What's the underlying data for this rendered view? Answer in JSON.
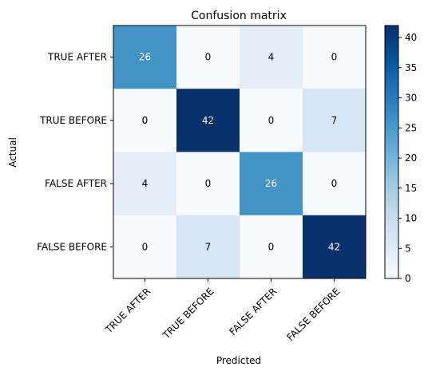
{
  "chart_data": {
    "type": "heatmap",
    "title": "Confusion matrix",
    "xlabel": "Predicted",
    "ylabel": "Actual",
    "row_labels": [
      "TRUE AFTER",
      "TRUE BEFORE",
      "FALSE AFTER",
      "FALSE BEFORE"
    ],
    "col_labels": [
      "TRUE AFTER",
      "TRUE BEFORE",
      "FALSE AFTER",
      "FALSE BEFORE"
    ],
    "values": [
      [
        26,
        0,
        4,
        0
      ],
      [
        0,
        42,
        0,
        7
      ],
      [
        4,
        0,
        26,
        0
      ],
      [
        0,
        7,
        0,
        42
      ]
    ],
    "colorbar": {
      "range": [
        0,
        42
      ],
      "ticks": [
        0,
        5,
        10,
        15,
        20,
        25,
        30,
        35,
        40
      ],
      "colormap": "Blues"
    },
    "text_colors": {
      "light": "#ffffff",
      "dark": "#000000"
    }
  }
}
